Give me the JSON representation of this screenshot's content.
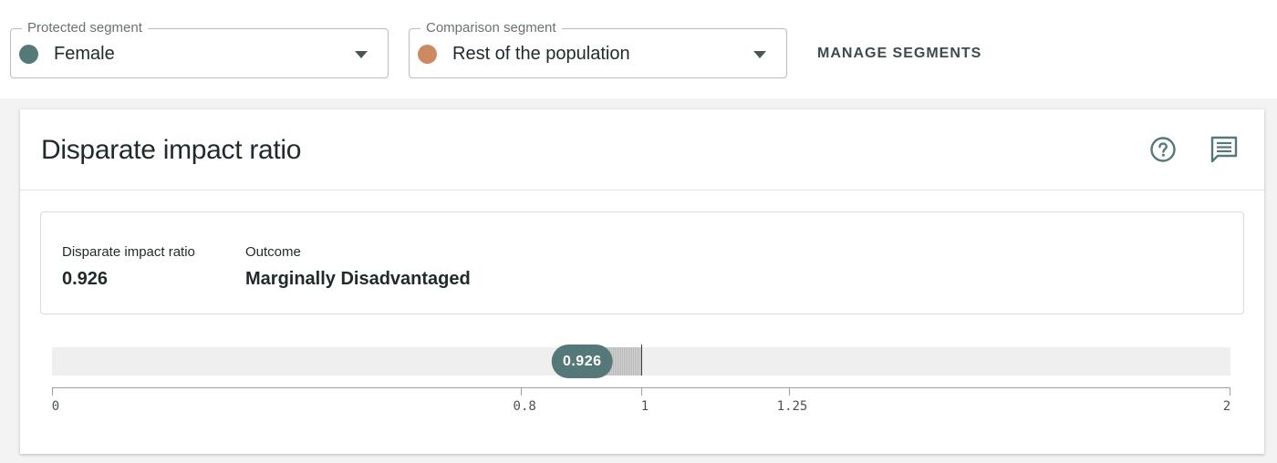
{
  "segments": {
    "protected": {
      "legend": "Protected segment",
      "value": "Female",
      "color": "#547978"
    },
    "comparison": {
      "legend": "Comparison segment",
      "value": "Rest of the population",
      "color": "#cd8a62"
    }
  },
  "manage_label": "MANAGE SEGMENTS",
  "card": {
    "title": "Disparate impact ratio",
    "help_icon": "help-circle-icon",
    "comment_icon": "comment-icon"
  },
  "summary": {
    "ratio_label": "Disparate impact ratio",
    "ratio_value": "0.926",
    "outcome_label": "Outcome",
    "outcome_value": "Marginally Disadvantaged"
  },
  "scale": {
    "value": 0.926,
    "value_label": "0.926",
    "reference": 1,
    "ticks": [
      "0",
      "0.8",
      "1",
      "1.25",
      "2"
    ],
    "colors": {
      "pill": "#547978",
      "track": "#efefef"
    }
  }
}
